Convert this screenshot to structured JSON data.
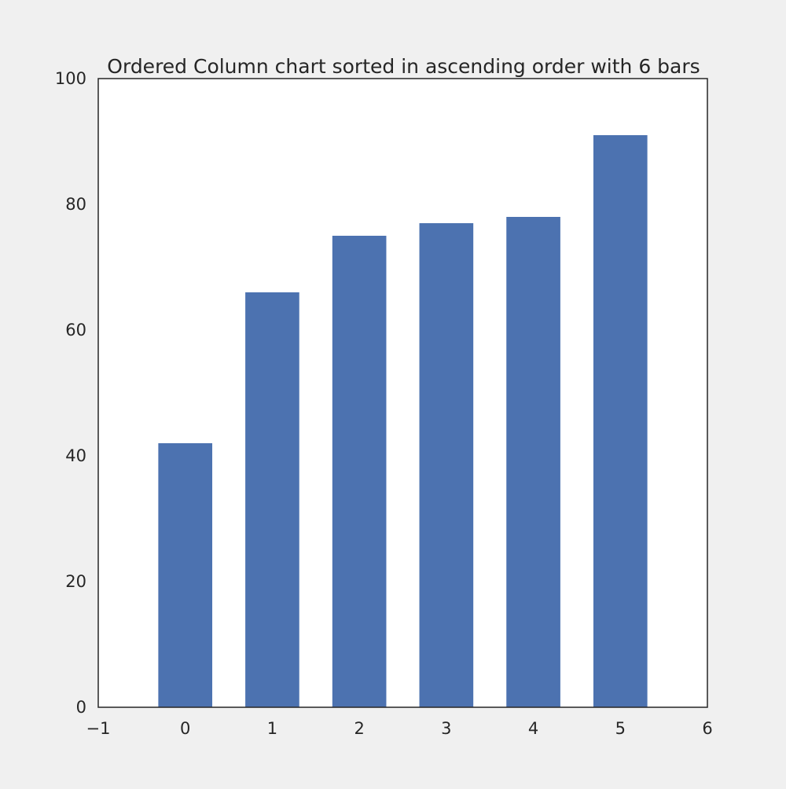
{
  "chart_data": {
    "type": "bar",
    "title": "Ordered Column chart sorted in ascending order with 6 bars",
    "xlabel": "",
    "ylabel": "",
    "x": [
      0,
      1,
      2,
      3,
      4,
      5
    ],
    "values": [
      42,
      66,
      75,
      77,
      78,
      91
    ],
    "xlim": [
      -1,
      6
    ],
    "ylim": [
      0,
      100
    ],
    "x_ticks": [
      "−1",
      "0",
      "1",
      "2",
      "3",
      "4",
      "5",
      "6"
    ],
    "y_ticks": [
      "0",
      "20",
      "40",
      "60",
      "80",
      "100"
    ],
    "bar_width": 0.62,
    "grid": false,
    "legend": "none",
    "colors": {
      "bar": "#4c72b0",
      "page_background": "#f0f0f0",
      "plot_background": "#ffffff",
      "axes": "#262626"
    }
  }
}
